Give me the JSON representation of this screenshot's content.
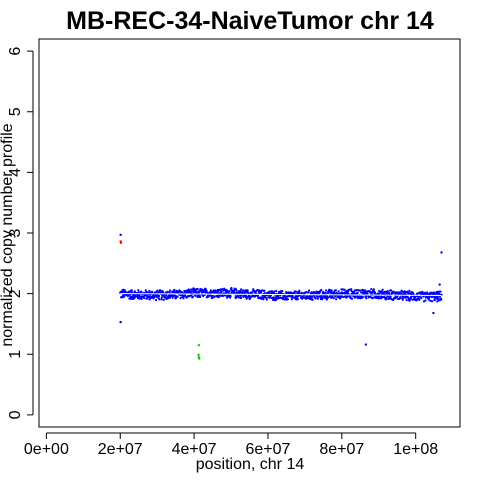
{
  "chart_data": {
    "type": "scatter",
    "title": "MB-REC-34-NaiveTumor chr 14",
    "xlabel": "position, chr 14",
    "ylabel": "normalized copy number profile",
    "xlim": [
      -2000000,
      112000000
    ],
    "ylim": [
      -0.2,
      6.2
    ],
    "x_ticks": [
      0,
      20000000,
      40000000,
      60000000,
      80000000,
      100000000
    ],
    "x_tick_labels": [
      "0e+00",
      "2e+07",
      "4e+07",
      "6e+07",
      "8e+07",
      "1e+08"
    ],
    "y_ticks": [
      0,
      1,
      2,
      3,
      4,
      5,
      6
    ],
    "y_tick_labels": [
      "0",
      "1",
      "2",
      "3",
      "4",
      "5",
      "6"
    ],
    "grid": false,
    "legend": "none",
    "series": [
      {
        "color": "#0000ff",
        "x_start": 20000000,
        "x_end": 107000000,
        "baseline": 2.0,
        "band_halfwidth": 0.07
      },
      {
        "color": "#0000ff",
        "points": [
          {
            "x": 20100000,
            "y": 1.53
          },
          {
            "x": 20100000,
            "y": 2.97
          },
          {
            "x": 86500000,
            "y": 1.16
          },
          {
            "x": 104800000,
            "y": 1.68
          },
          {
            "x": 107000000,
            "y": 2.68
          },
          {
            "x": 106500000,
            "y": 2.15
          }
        ]
      },
      {
        "color": "#ff0000",
        "points": [
          {
            "x": 20100000,
            "y": 2.86
          },
          {
            "x": 20200000,
            "y": 2.84
          }
        ]
      },
      {
        "color": "#00cc00",
        "points": [
          {
            "x": 41300000,
            "y": 1.15
          },
          {
            "x": 41200000,
            "y": 0.99
          },
          {
            "x": 41300000,
            "y": 0.95
          },
          {
            "x": 41400000,
            "y": 0.93
          }
        ]
      },
      {
        "color": "#ffffff",
        "type": "line",
        "points": [
          {
            "x": 20000000,
            "y": 2.0
          },
          {
            "x": 107000000,
            "y": 1.97
          }
        ]
      }
    ]
  }
}
